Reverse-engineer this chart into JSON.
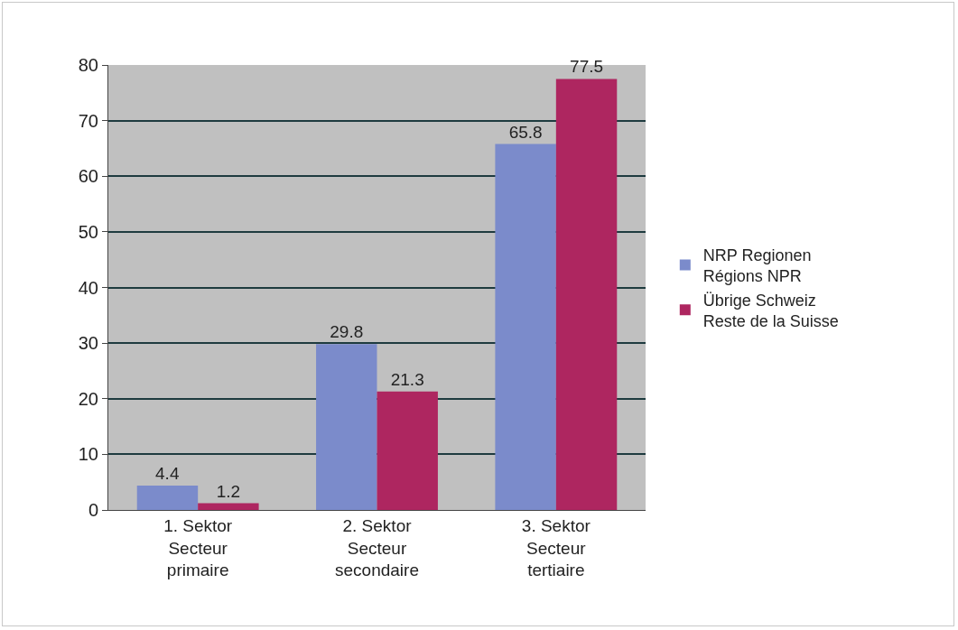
{
  "chart_data": {
    "type": "bar",
    "categories": [
      "1. Sektor\nSecteur\nprimaire",
      "2. Sektor\nSecteur\nsecondaire",
      "3. Sektor\nSecteur\ntertiaire"
    ],
    "series": [
      {
        "name": "NRP Regionen\nRégions NPR",
        "color": "#7b8bcb",
        "values": [
          4.4,
          29.8,
          65.8
        ]
      },
      {
        "name": "Übrige Schweiz\nReste de la Suisse",
        "color": "#ae2660",
        "values": [
          1.2,
          21.3,
          77.5
        ]
      }
    ],
    "ylim": [
      0,
      80
    ],
    "yticks": [
      0,
      10,
      20,
      30,
      40,
      50,
      60,
      70,
      80
    ],
    "grid": "y",
    "legend": "right",
    "data_labels": true
  }
}
